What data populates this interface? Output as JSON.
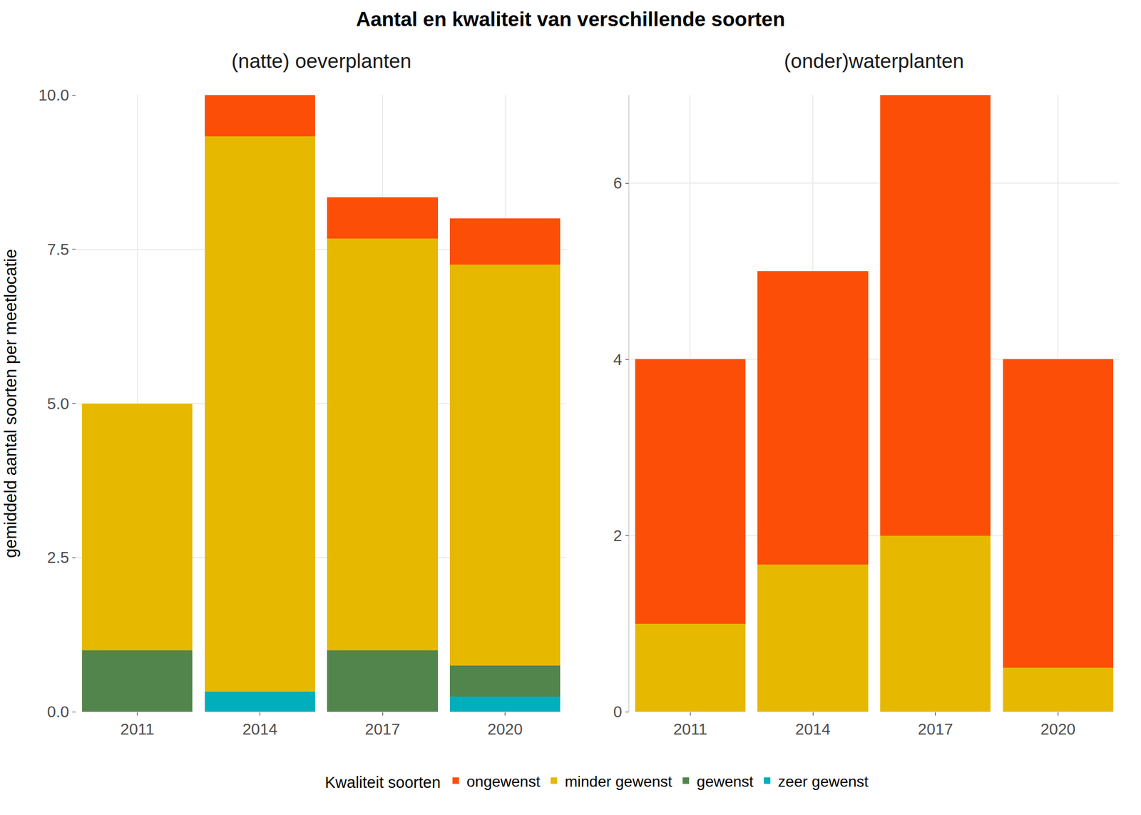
{
  "chart_data": {
    "type": "bar",
    "title": "Aantal en kwaliteit van verschillende soorten",
    "ylabel": "gemiddeld aantal soorten per meetlocatie",
    "legend_title": "Kwaliteit soorten",
    "legend": "bottom",
    "stacked": true,
    "grid": true,
    "categories": [
      "2011",
      "2014",
      "2017",
      "2020"
    ],
    "panels": [
      {
        "subtitle": "(natte) oeverplanten",
        "ylim": [
          0,
          10
        ],
        "yticks": [
          {
            "value": 0,
            "label": "0.0"
          },
          2.5,
          {
            "value": 5,
            "label": "5.0"
          },
          7.5,
          {
            "value": 10,
            "label": "10.0"
          }
        ],
        "series": [
          {
            "name": "ongewenst",
            "color": "#FC4E07",
            "values": [
              0,
              0.67,
              0.67,
              0.75
            ]
          },
          {
            "name": "minder gewenst",
            "color": "#E7B800",
            "values": [
              4,
              9,
              6.67,
              6.5
            ]
          },
          {
            "name": "gewenst",
            "color": "#52854C",
            "values": [
              1,
              0,
              1,
              0.5
            ]
          },
          {
            "name": "zeer gewenst",
            "color": "#00AFBB",
            "values": [
              0,
              0.33,
              0,
              0.25
            ]
          }
        ]
      },
      {
        "subtitle": "(onder)waterplanten",
        "ylim": [
          0,
          7
        ],
        "yticks": [
          0,
          2,
          4,
          6
        ],
        "series": [
          {
            "name": "ongewenst",
            "color": "#FC4E07",
            "values": [
              3,
              3.33,
              5,
              3.5
            ]
          },
          {
            "name": "minder gewenst",
            "color": "#E7B800",
            "values": [
              1,
              1.67,
              2,
              0.5
            ]
          }
        ]
      }
    ]
  }
}
